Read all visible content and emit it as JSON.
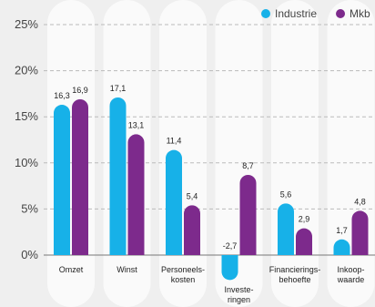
{
  "chart_data": {
    "type": "bar",
    "categories": [
      "Omzet",
      "Winst",
      "Personeels-\nkosten",
      "Investe-\nringen",
      "Financierings-\nbehoefte",
      "Inkoop-\nwaarde"
    ],
    "series": [
      {
        "name": "Industrie",
        "color": "#17b1e8",
        "values": [
          16.3,
          17.1,
          11.4,
          -2.7,
          5.6,
          1.7
        ],
        "value_labels": [
          "16,3",
          "17,1",
          "11,4",
          "-2,7",
          "5,6",
          "1,7"
        ]
      },
      {
        "name": "Mkb",
        "color": "#7d2a8c",
        "values": [
          16.9,
          13.1,
          5.4,
          8.7,
          2.9,
          4.8
        ],
        "value_labels": [
          "16,9",
          "13,1",
          "5,4",
          "8,7",
          "2,9",
          "4,8"
        ]
      }
    ],
    "ylim": [
      0,
      25
    ],
    "yticks": [
      {
        "value": 0,
        "label": "0%"
      },
      {
        "value": 5,
        "label": "5%"
      },
      {
        "value": 10,
        "label": "10%"
      },
      {
        "value": 15,
        "label": "15%"
      },
      {
        "value": 20,
        "label": "20%"
      },
      {
        "value": 25,
        "label": "25%"
      }
    ],
    "grid": true,
    "legend": "top-right"
  }
}
